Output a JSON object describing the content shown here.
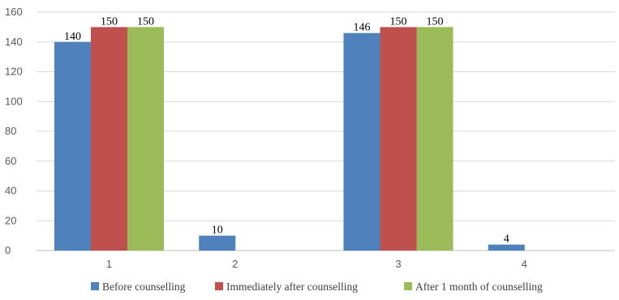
{
  "chart_data": {
    "type": "bar",
    "title": "",
    "xlabel": "",
    "ylabel": "",
    "categories": [
      "1",
      "2",
      "3",
      "4"
    ],
    "ylim": [
      0,
      160
    ],
    "yticks": [
      0,
      20,
      40,
      60,
      80,
      100,
      120,
      140,
      160
    ],
    "grid": true,
    "legend_position": "bottom",
    "series": [
      {
        "name": "Before counselling",
        "color": "#4f81bd",
        "values": [
          140,
          10,
          146,
          4
        ]
      },
      {
        "name": "Immediately after counselling",
        "color": "#c0504d",
        "values": [
          150,
          null,
          150,
          null
        ]
      },
      {
        "name": "After 1 month of counselling",
        "color": "#9bbb59",
        "values": [
          150,
          null,
          150,
          null
        ]
      }
    ]
  }
}
